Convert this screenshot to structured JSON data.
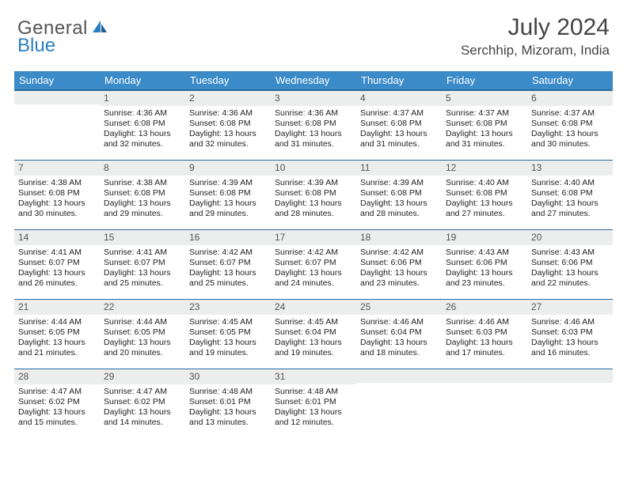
{
  "brand": {
    "text1": "General",
    "text2": "Blue"
  },
  "title": "July 2024",
  "location": "Serchhip, Mizoram, India",
  "colors": {
    "header_bg": "#3b8bc8",
    "header_border": "#2a6a9a",
    "daynum_bg": "#eceded",
    "text": "#222222",
    "logo_gray": "#555555",
    "logo_blue": "#2a7fbf"
  },
  "fonts": {
    "title_size": 30,
    "location_size": 17,
    "dayhead_size": 13,
    "cell_size": 10.5
  },
  "day_headers": [
    "Sunday",
    "Monday",
    "Tuesday",
    "Wednesday",
    "Thursday",
    "Friday",
    "Saturday"
  ],
  "first_day_offset": 1,
  "days": [
    {
      "n": 1,
      "sunrise": "4:36 AM",
      "sunset": "6:08 PM",
      "daylight": "13 hours and 32 minutes."
    },
    {
      "n": 2,
      "sunrise": "4:36 AM",
      "sunset": "6:08 PM",
      "daylight": "13 hours and 32 minutes."
    },
    {
      "n": 3,
      "sunrise": "4:36 AM",
      "sunset": "6:08 PM",
      "daylight": "13 hours and 31 minutes."
    },
    {
      "n": 4,
      "sunrise": "4:37 AM",
      "sunset": "6:08 PM",
      "daylight": "13 hours and 31 minutes."
    },
    {
      "n": 5,
      "sunrise": "4:37 AM",
      "sunset": "6:08 PM",
      "daylight": "13 hours and 31 minutes."
    },
    {
      "n": 6,
      "sunrise": "4:37 AM",
      "sunset": "6:08 PM",
      "daylight": "13 hours and 30 minutes."
    },
    {
      "n": 7,
      "sunrise": "4:38 AM",
      "sunset": "6:08 PM",
      "daylight": "13 hours and 30 minutes."
    },
    {
      "n": 8,
      "sunrise": "4:38 AM",
      "sunset": "6:08 PM",
      "daylight": "13 hours and 29 minutes."
    },
    {
      "n": 9,
      "sunrise": "4:39 AM",
      "sunset": "6:08 PM",
      "daylight": "13 hours and 29 minutes."
    },
    {
      "n": 10,
      "sunrise": "4:39 AM",
      "sunset": "6:08 PM",
      "daylight": "13 hours and 28 minutes."
    },
    {
      "n": 11,
      "sunrise": "4:39 AM",
      "sunset": "6:08 PM",
      "daylight": "13 hours and 28 minutes."
    },
    {
      "n": 12,
      "sunrise": "4:40 AM",
      "sunset": "6:08 PM",
      "daylight": "13 hours and 27 minutes."
    },
    {
      "n": 13,
      "sunrise": "4:40 AM",
      "sunset": "6:08 PM",
      "daylight": "13 hours and 27 minutes."
    },
    {
      "n": 14,
      "sunrise": "4:41 AM",
      "sunset": "6:07 PM",
      "daylight": "13 hours and 26 minutes."
    },
    {
      "n": 15,
      "sunrise": "4:41 AM",
      "sunset": "6:07 PM",
      "daylight": "13 hours and 25 minutes."
    },
    {
      "n": 16,
      "sunrise": "4:42 AM",
      "sunset": "6:07 PM",
      "daylight": "13 hours and 25 minutes."
    },
    {
      "n": 17,
      "sunrise": "4:42 AM",
      "sunset": "6:07 PM",
      "daylight": "13 hours and 24 minutes."
    },
    {
      "n": 18,
      "sunrise": "4:42 AM",
      "sunset": "6:06 PM",
      "daylight": "13 hours and 23 minutes."
    },
    {
      "n": 19,
      "sunrise": "4:43 AM",
      "sunset": "6:06 PM",
      "daylight": "13 hours and 23 minutes."
    },
    {
      "n": 20,
      "sunrise": "4:43 AM",
      "sunset": "6:06 PM",
      "daylight": "13 hours and 22 minutes."
    },
    {
      "n": 21,
      "sunrise": "4:44 AM",
      "sunset": "6:05 PM",
      "daylight": "13 hours and 21 minutes."
    },
    {
      "n": 22,
      "sunrise": "4:44 AM",
      "sunset": "6:05 PM",
      "daylight": "13 hours and 20 minutes."
    },
    {
      "n": 23,
      "sunrise": "4:45 AM",
      "sunset": "6:05 PM",
      "daylight": "13 hours and 19 minutes."
    },
    {
      "n": 24,
      "sunrise": "4:45 AM",
      "sunset": "6:04 PM",
      "daylight": "13 hours and 19 minutes."
    },
    {
      "n": 25,
      "sunrise": "4:46 AM",
      "sunset": "6:04 PM",
      "daylight": "13 hours and 18 minutes."
    },
    {
      "n": 26,
      "sunrise": "4:46 AM",
      "sunset": "6:03 PM",
      "daylight": "13 hours and 17 minutes."
    },
    {
      "n": 27,
      "sunrise": "4:46 AM",
      "sunset": "6:03 PM",
      "daylight": "13 hours and 16 minutes."
    },
    {
      "n": 28,
      "sunrise": "4:47 AM",
      "sunset": "6:02 PM",
      "daylight": "13 hours and 15 minutes."
    },
    {
      "n": 29,
      "sunrise": "4:47 AM",
      "sunset": "6:02 PM",
      "daylight": "13 hours and 14 minutes."
    },
    {
      "n": 30,
      "sunrise": "4:48 AM",
      "sunset": "6:01 PM",
      "daylight": "13 hours and 13 minutes."
    },
    {
      "n": 31,
      "sunrise": "4:48 AM",
      "sunset": "6:01 PM",
      "daylight": "13 hours and 12 minutes."
    }
  ],
  "labels": {
    "sunrise": "Sunrise:",
    "sunset": "Sunset:",
    "daylight": "Daylight:"
  }
}
